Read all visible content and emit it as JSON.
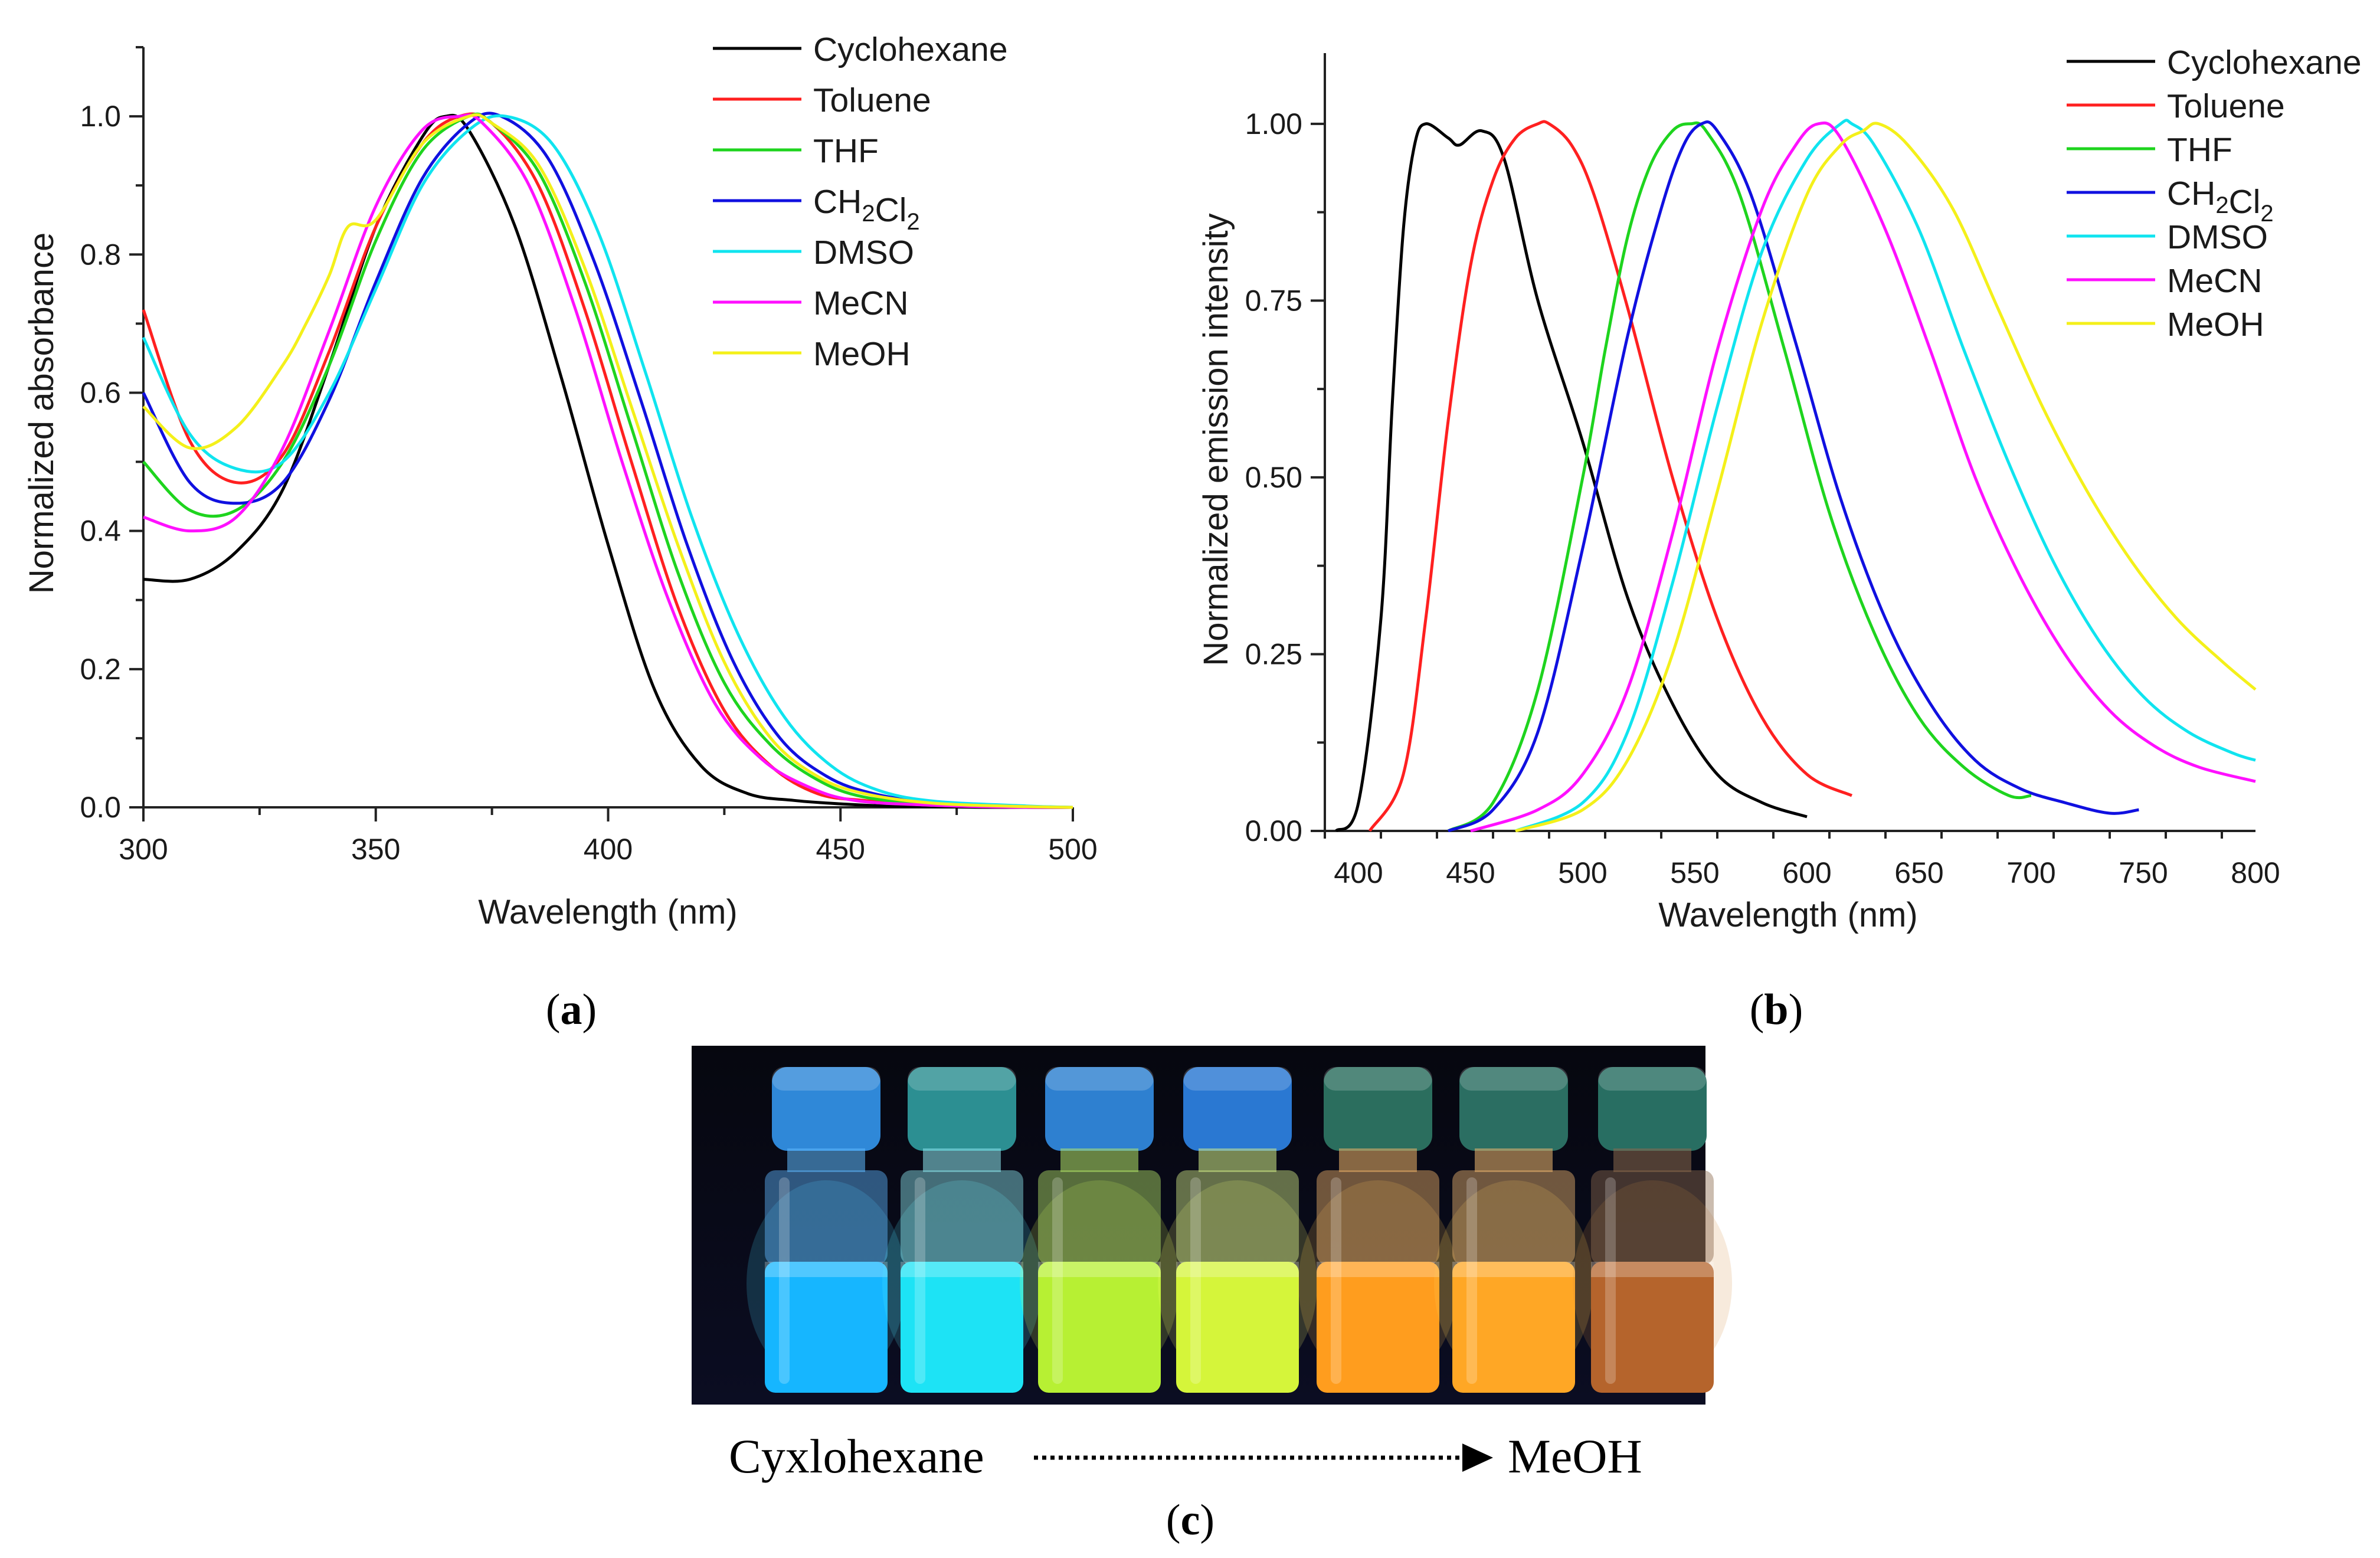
{
  "colors": {
    "Cyclohexane": "#000000",
    "Toluene": "#ff2020",
    "THF": "#1ed41e",
    "CH2Cl2": "#1010e0",
    "DMSO": "#10e4ef",
    "MeCN": "#ff10ff",
    "MeOH": "#f4f01a"
  },
  "chart_data": [
    {
      "panel": "(a)",
      "type": "line",
      "xlabel": "Wavelength (nm)",
      "ylabel": "Normalized absorbance",
      "xlim": [
        300,
        500
      ],
      "ylim": [
        0,
        1.1
      ],
      "x_ticks": [
        "300",
        "350",
        "400",
        "450",
        "500"
      ],
      "y_ticks": [
        "0.0",
        "0.2",
        "0.4",
        "0.6",
        "0.8",
        "1.0"
      ],
      "legend_position": "top-right",
      "series": [
        {
          "name": "Cyclohexane",
          "color_key": "Cyclohexane",
          "x": [
            300,
            310,
            320,
            330,
            340,
            350,
            360,
            365,
            370,
            380,
            390,
            400,
            410,
            420,
            430,
            440,
            450,
            460,
            480,
            500
          ],
          "y": [
            0.33,
            0.33,
            0.37,
            0.46,
            0.64,
            0.84,
            0.97,
            1.0,
            0.98,
            0.84,
            0.62,
            0.38,
            0.17,
            0.06,
            0.02,
            0.01,
            0.005,
            0.002,
            0.0,
            0.0
          ]
        },
        {
          "name": "Toluene",
          "color_key": "Toluene",
          "x": [
            300,
            310,
            320,
            330,
            340,
            350,
            360,
            368,
            375,
            385,
            395,
            405,
            415,
            425,
            435,
            445,
            455,
            470,
            490,
            500
          ],
          "y": [
            0.72,
            0.53,
            0.47,
            0.51,
            0.66,
            0.84,
            0.96,
            1.0,
            0.99,
            0.9,
            0.72,
            0.5,
            0.29,
            0.14,
            0.06,
            0.02,
            0.01,
            0.003,
            0.0,
            0.0
          ]
        },
        {
          "name": "THF",
          "color_key": "THF",
          "x": [
            300,
            310,
            320,
            330,
            340,
            350,
            360,
            370,
            375,
            385,
            395,
            405,
            415,
            425,
            435,
            445,
            455,
            470,
            490,
            500
          ],
          "y": [
            0.5,
            0.43,
            0.43,
            0.5,
            0.64,
            0.82,
            0.95,
            1.0,
            0.99,
            0.92,
            0.76,
            0.55,
            0.34,
            0.18,
            0.09,
            0.04,
            0.015,
            0.005,
            0.0,
            0.0
          ]
        },
        {
          "name": "CH₂Cl₂",
          "color_key": "CH2Cl2",
          "x": [
            300,
            310,
            320,
            330,
            340,
            350,
            360,
            370,
            377,
            387,
            397,
            407,
            417,
            427,
            437,
            447,
            457,
            470,
            490,
            500
          ],
          "y": [
            0.6,
            0.47,
            0.44,
            0.47,
            0.59,
            0.76,
            0.91,
            0.99,
            1.0,
            0.94,
            0.79,
            0.59,
            0.38,
            0.21,
            0.1,
            0.045,
            0.02,
            0.007,
            0.001,
            0.0
          ]
        },
        {
          "name": "DMSO",
          "color_key": "DMSO",
          "x": [
            300,
            310,
            320,
            330,
            340,
            350,
            360,
            370,
            378,
            388,
            398,
            408,
            418,
            428,
            438,
            448,
            458,
            470,
            490,
            500
          ],
          "y": [
            0.68,
            0.54,
            0.49,
            0.5,
            0.6,
            0.75,
            0.9,
            0.98,
            1.0,
            0.96,
            0.83,
            0.63,
            0.42,
            0.25,
            0.13,
            0.06,
            0.025,
            0.009,
            0.002,
            0.0
          ]
        },
        {
          "name": "MeCN",
          "color_key": "MeCN",
          "x": [
            300,
            310,
            320,
            330,
            340,
            350,
            360,
            368,
            373,
            383,
            393,
            403,
            413,
            423,
            433,
            443,
            453,
            470,
            490,
            500
          ],
          "y": [
            0.42,
            0.4,
            0.42,
            0.52,
            0.69,
            0.87,
            0.98,
            1.0,
            0.99,
            0.9,
            0.72,
            0.5,
            0.3,
            0.15,
            0.07,
            0.03,
            0.01,
            0.003,
            0.0,
            0.0
          ]
        },
        {
          "name": "MeOH",
          "color_key": "MeOH",
          "x": [
            300,
            310,
            320,
            330,
            335,
            340,
            344,
            350,
            360,
            370,
            375,
            385,
            395,
            405,
            415,
            425,
            435,
            445,
            455,
            470,
            490,
            500
          ],
          "y": [
            0.58,
            0.52,
            0.55,
            0.64,
            0.7,
            0.77,
            0.84,
            0.85,
            0.96,
            1.0,
            0.99,
            0.93,
            0.78,
            0.58,
            0.38,
            0.21,
            0.1,
            0.045,
            0.02,
            0.006,
            0.001,
            0.0
          ]
        }
      ]
    },
    {
      "panel": "(b)",
      "type": "line",
      "xlabel": "Wavelength (nm)",
      "ylabel": "Normalized emission intensity",
      "xlim": [
        385,
        800
      ],
      "ylim": [
        0,
        1.1
      ],
      "x_ticks": [
        "400",
        "450",
        "500",
        "550",
        "600",
        "650",
        "700",
        "750",
        "800"
      ],
      "y_ticks": [
        "0.00",
        "0.25",
        "0.50",
        "0.75",
        "1.00"
      ],
      "legend_position": "top-right",
      "series": [
        {
          "name": "Cyclohexane",
          "color_key": "Cyclohexane",
          "x": [
            390,
            400,
            410,
            415,
            420,
            425,
            430,
            440,
            445,
            455,
            465,
            480,
            500,
            520,
            540,
            560,
            580,
            600
          ],
          "y": [
            0.0,
            0.04,
            0.3,
            0.6,
            0.85,
            0.97,
            1.0,
            0.98,
            0.97,
            0.99,
            0.95,
            0.75,
            0.55,
            0.33,
            0.18,
            0.08,
            0.04,
            0.02
          ]
        },
        {
          "name": "Toluene",
          "color_key": "Toluene",
          "x": [
            405,
            420,
            430,
            440,
            450,
            460,
            470,
            480,
            485,
            495,
            505,
            520,
            540,
            560,
            580,
            600,
            620
          ],
          "y": [
            0.0,
            0.08,
            0.3,
            0.58,
            0.8,
            0.92,
            0.98,
            1.0,
            1.0,
            0.97,
            0.9,
            0.74,
            0.5,
            0.3,
            0.16,
            0.08,
            0.05
          ]
        },
        {
          "name": "THF",
          "color_key": "THF",
          "x": [
            440,
            460,
            480,
            500,
            510,
            520,
            530,
            540,
            548,
            555,
            570,
            590,
            610,
            630,
            650,
            670,
            690,
            700
          ],
          "y": [
            0.0,
            0.04,
            0.2,
            0.5,
            0.68,
            0.84,
            0.94,
            0.99,
            1.0,
            0.99,
            0.9,
            0.68,
            0.45,
            0.28,
            0.16,
            0.09,
            0.05,
            0.05
          ]
        },
        {
          "name": "CH₂Cl₂",
          "color_key": "CH2Cl2",
          "x": [
            440,
            460,
            480,
            500,
            520,
            535,
            545,
            553,
            560,
            575,
            595,
            615,
            635,
            655,
            675,
            695,
            715,
            735,
            748
          ],
          "y": [
            0.0,
            0.03,
            0.14,
            0.4,
            0.7,
            0.88,
            0.97,
            1.0,
            0.99,
            0.9,
            0.69,
            0.47,
            0.3,
            0.18,
            0.1,
            0.06,
            0.04,
            0.025,
            0.03
          ]
        },
        {
          "name": "DMSO",
          "color_key": "DMSO",
          "x": [
            470,
            500,
            520,
            540,
            560,
            580,
            600,
            615,
            620,
            630,
            650,
            670,
            690,
            710,
            730,
            750,
            770,
            790,
            800
          ],
          "y": [
            0.0,
            0.04,
            0.14,
            0.35,
            0.6,
            0.82,
            0.95,
            1.0,
            1.0,
            0.97,
            0.85,
            0.68,
            0.52,
            0.38,
            0.27,
            0.19,
            0.14,
            0.11,
            0.1
          ]
        },
        {
          "name": "MeCN",
          "color_key": "MeCN",
          "x": [
            450,
            480,
            500,
            520,
            540,
            560,
            580,
            595,
            605,
            615,
            635,
            655,
            675,
            695,
            715,
            735,
            755,
            775,
            800
          ],
          "y": [
            0.0,
            0.03,
            0.08,
            0.2,
            0.42,
            0.68,
            0.88,
            0.97,
            1.0,
            0.98,
            0.85,
            0.68,
            0.5,
            0.36,
            0.25,
            0.17,
            0.12,
            0.09,
            0.07
          ]
        },
        {
          "name": "MeOH",
          "color_key": "MeOH",
          "x": [
            470,
            500,
            520,
            540,
            560,
            580,
            600,
            615,
            625,
            632,
            645,
            665,
            685,
            705,
            725,
            745,
            765,
            785,
            800
          ],
          "y": [
            0.0,
            0.03,
            0.1,
            0.25,
            0.48,
            0.72,
            0.9,
            0.97,
            0.99,
            1.0,
            0.97,
            0.88,
            0.74,
            0.6,
            0.48,
            0.38,
            0.3,
            0.24,
            0.2
          ]
        }
      ]
    }
  ],
  "panel_labels": {
    "a": "a",
    "b": "b",
    "c": "c"
  },
  "photo": {
    "caption_left": "Cyxlohexane",
    "caption_right": "MeOH",
    "vials": [
      {
        "cap": "#2f88d8",
        "glass": "#5fb9ff",
        "liquid": "#16b6ff",
        "glow": "#49d6ff"
      },
      {
        "cap": "#2c8f92",
        "glass": "#8ee8f0",
        "liquid": "#1de3f5",
        "glow": "#55f1ff"
      },
      {
        "cap": "#2e80d0",
        "glass": "#b7e86a",
        "liquid": "#b7f033",
        "glow": "#e6ff55"
      },
      {
        "cap": "#2a78d2",
        "glass": "#d4ee88",
        "liquid": "#d5f53a",
        "glow": "#f7ff6e"
      },
      {
        "cap": "#2b6e5e",
        "glass": "#f0b46a",
        "liquid": "#ff9d1e",
        "glow": "#ffc44d"
      },
      {
        "cap": "#2b6e62",
        "glass": "#f0b870",
        "liquid": "#ffa725",
        "glow": "#ffd05a"
      },
      {
        "cap": "#286e62",
        "glass": "#8c6a4e",
        "liquid": "#b5642c",
        "glow": "#d5893e"
      }
    ]
  }
}
